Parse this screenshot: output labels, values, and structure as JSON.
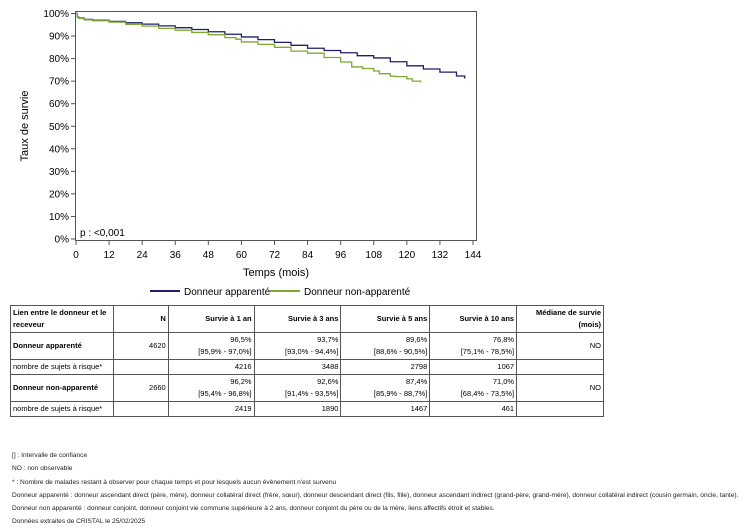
{
  "chart_data": {
    "type": "line",
    "xlabel": "Temps (mois)",
    "ylabel": "Taux de survie",
    "xlim": [
      0,
      144
    ],
    "ylim": [
      0,
      100
    ],
    "xticks": [
      "0",
      "12",
      "24",
      "36",
      "48",
      "60",
      "72",
      "84",
      "96",
      "108",
      "120",
      "132",
      "144"
    ],
    "yticks": [
      "0%",
      "10%",
      "20%",
      "30%",
      "40%",
      "50%",
      "60%",
      "70%",
      "80%",
      "90%",
      "100%"
    ],
    "grid": false,
    "legend": "bottom",
    "annotation": "p : <0,001",
    "series": [
      {
        "name": "Donneur apparenté",
        "color": "#1f1f6b",
        "x": [
          0,
          0.5,
          1,
          3,
          6,
          12,
          18,
          24,
          30,
          36,
          42,
          48,
          54,
          60,
          66,
          72,
          78,
          84,
          90,
          96,
          102,
          108,
          114,
          120,
          126,
          132,
          138,
          141
        ],
        "y": [
          100,
          98.5,
          98,
          97.4,
          97,
          96.5,
          95.9,
          95.3,
          94.5,
          93.7,
          92.9,
          91.9,
          90.8,
          89.6,
          88.4,
          87.2,
          85.9,
          84.6,
          83.6,
          82.6,
          81.3,
          80.3,
          78.6,
          76.8,
          75.4,
          74,
          72.3,
          71.2
        ]
      },
      {
        "name": "Donneur non-apparenté",
        "color": "#7fa832",
        "x": [
          0,
          0.5,
          1,
          3,
          6,
          12,
          18,
          24,
          30,
          36,
          42,
          48,
          54,
          58,
          60,
          66,
          72,
          78,
          84,
          90,
          96,
          100,
          104,
          108,
          110,
          114,
          116,
          120,
          122,
          125
        ],
        "y": [
          100,
          98.3,
          97.8,
          97.2,
          96.8,
          96.2,
          95.2,
          94.4,
          93.4,
          92.6,
          91.6,
          90.6,
          89.3,
          88.6,
          87.4,
          86.3,
          85,
          83.3,
          82.4,
          80.5,
          78.5,
          76.3,
          75.6,
          74.5,
          73.3,
          72.2,
          72,
          71,
          70,
          69.4
        ]
      }
    ]
  },
  "table": {
    "headers": [
      "Lien entre le donneur et le receveur",
      "N",
      "Survie à 1 an",
      "Survie à 3 ans",
      "Survie à 5 ans",
      "Survie à 10 ans",
      "Médiane de survie (mois)"
    ],
    "groups": [
      {
        "label": "Donneur apparenté",
        "n": "4620",
        "values": [
          "96,5%",
          "93,7%",
          "89,6%",
          "76,8%"
        ],
        "ci": [
          "[95,9% - 97,0%]",
          "[93,0% - 94,4%]",
          "[88,6% - 90,5%]",
          "[75,1% - 78,5%]"
        ],
        "median": "NO",
        "risk_label": "nombre de sujets à risque*",
        "risk": [
          "4216",
          "3488",
          "2798",
          "1067"
        ]
      },
      {
        "label": "Donneur non-apparenté",
        "n": "2660",
        "values": [
          "96,2%",
          "92,6%",
          "87,4%",
          "71,0%"
        ],
        "ci": [
          "[95,4% - 96,8%]",
          "[91,4% - 93,5%]",
          "[85,9% - 88,7%]",
          "[68,4% - 73,5%]"
        ],
        "median": "NO",
        "risk_label": "nombre de sujets à risque*",
        "risk": [
          "2419",
          "1890",
          "1467",
          "461"
        ]
      }
    ]
  },
  "notes": [
    "[] : Intervalle de confiance",
    "NO : non observable",
    "* : Nombre de malades restant à observer pour chaque temps et pour lesquels aucun évènement n'est survenu",
    "Donneur apparenté : donneur ascendant direct (père, mère), donneur collatéral direct (frère, sœur), donneur descendant direct (fils, fille), donneur ascendant indirect (grand-père, grand-mère), donneur collatéral indirect (cousin germain, oncle, tante).",
    "Donneur non apparenté : donneur conjoint, donneur conjoint vie commune supérieure à 2 ans, donneur conjoint du père ou de la mère, liens affectifs étroit et stables.",
    "Données extraites de CRISTAL le 25/02/2025"
  ]
}
